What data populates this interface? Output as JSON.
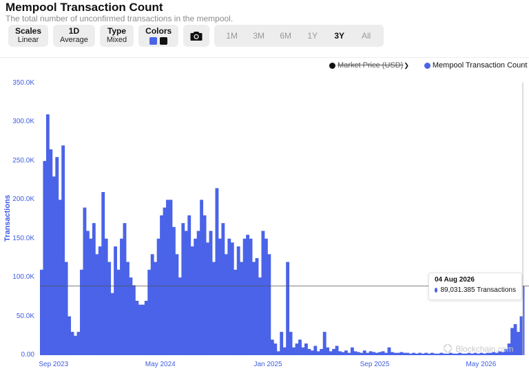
{
  "header": {
    "title": "Mempool Transaction Count",
    "subtitle": "The total number of unconfirmed transactions in the mempool."
  },
  "toolbar": {
    "scales": {
      "label": "Scales",
      "value": "Linear"
    },
    "resolution": {
      "label": "1D",
      "value": "Average"
    },
    "type": {
      "label": "Type",
      "value": "Mixed"
    },
    "colors": {
      "label": "Colors",
      "swatches": [
        "#4a63e8",
        "#111111"
      ]
    },
    "camera_icon": "camera-icon",
    "ranges": [
      "1M",
      "3M",
      "6M",
      "1Y",
      "3Y",
      "All"
    ],
    "active_range": "3Y"
  },
  "legend": {
    "items": [
      {
        "name": "Market Price (USD)",
        "color": "#111111",
        "active": false
      },
      {
        "name": "Mempool Transaction Count",
        "color": "#4a63e8",
        "active": true
      }
    ]
  },
  "tooltip": {
    "date": "04 Aug 2026",
    "value_text": "89,031.385 Transactions"
  },
  "watermark": "Blockchain.com",
  "chart_data": {
    "type": "bar",
    "ylabel": "Transactions",
    "ylim": [
      0,
      350000
    ],
    "yticks": [
      "0.00",
      "50.0K",
      "100.0K",
      "150.0K",
      "200.0K",
      "250.0K",
      "300.0K",
      "350.0K"
    ],
    "xticks": [
      "Sep 2023",
      "May 2024",
      "Jan 2025",
      "Sep 2025",
      "May 2026"
    ],
    "x_range": [
      "2023-08-01",
      "2026-08-04"
    ],
    "color": "#4a63e8",
    "series": [
      {
        "name": "Mempool Transaction Count",
        "points": [
          [
            "2023-08-01",
            110000
          ],
          [
            "2023-08-08",
            250000
          ],
          [
            "2023-08-15",
            310000
          ],
          [
            "2023-08-22",
            265000
          ],
          [
            "2023-08-29",
            230000
          ],
          [
            "2023-09-05",
            255000
          ],
          [
            "2023-09-12",
            200000
          ],
          [
            "2023-09-19",
            270000
          ],
          [
            "2023-09-26",
            120000
          ],
          [
            "2023-10-03",
            50000
          ],
          [
            "2023-10-10",
            30000
          ],
          [
            "2023-10-17",
            25000
          ],
          [
            "2023-10-24",
            30000
          ],
          [
            "2023-10-31",
            110000
          ],
          [
            "2023-11-07",
            190000
          ],
          [
            "2023-11-14",
            160000
          ],
          [
            "2023-11-21",
            150000
          ],
          [
            "2023-11-28",
            170000
          ],
          [
            "2023-12-05",
            130000
          ],
          [
            "2023-12-12",
            140000
          ],
          [
            "2023-12-19",
            210000
          ],
          [
            "2023-12-26",
            150000
          ],
          [
            "2024-01-02",
            120000
          ],
          [
            "2024-01-09",
            80000
          ],
          [
            "2024-01-16",
            140000
          ],
          [
            "2024-01-23",
            110000
          ],
          [
            "2024-01-30",
            150000
          ],
          [
            "2024-02-06",
            170000
          ],
          [
            "2024-02-13",
            120000
          ],
          [
            "2024-02-20",
            100000
          ],
          [
            "2024-02-27",
            90000
          ],
          [
            "2024-03-05",
            70000
          ],
          [
            "2024-03-12",
            65000
          ],
          [
            "2024-03-19",
            65000
          ],
          [
            "2024-03-26",
            70000
          ],
          [
            "2024-04-02",
            110000
          ],
          [
            "2024-04-09",
            130000
          ],
          [
            "2024-04-16",
            120000
          ],
          [
            "2024-04-23",
            150000
          ],
          [
            "2024-04-30",
            180000
          ],
          [
            "2024-05-07",
            190000
          ],
          [
            "2024-05-14",
            200000
          ],
          [
            "2024-05-21",
            200000
          ],
          [
            "2024-05-28",
            165000
          ],
          [
            "2024-06-04",
            130000
          ],
          [
            "2024-06-11",
            100000
          ],
          [
            "2024-06-18",
            170000
          ],
          [
            "2024-06-25",
            160000
          ],
          [
            "2024-07-02",
            180000
          ],
          [
            "2024-07-09",
            140000
          ],
          [
            "2024-07-16",
            150000
          ],
          [
            "2024-07-23",
            160000
          ],
          [
            "2024-07-30",
            200000
          ],
          [
            "2024-08-06",
            180000
          ],
          [
            "2024-08-13",
            145000
          ],
          [
            "2024-08-20",
            160000
          ],
          [
            "2024-08-27",
            120000
          ],
          [
            "2024-09-03",
            215000
          ],
          [
            "2024-09-10",
            150000
          ],
          [
            "2024-09-17",
            170000
          ],
          [
            "2024-09-24",
            130000
          ],
          [
            "2024-10-01",
            150000
          ],
          [
            "2024-10-08",
            145000
          ],
          [
            "2024-10-15",
            110000
          ],
          [
            "2024-10-22",
            140000
          ],
          [
            "2024-10-29",
            120000
          ],
          [
            "2024-11-05",
            150000
          ],
          [
            "2024-11-12",
            155000
          ],
          [
            "2024-11-19",
            150000
          ],
          [
            "2024-11-26",
            120000
          ],
          [
            "2024-12-03",
            125000
          ],
          [
            "2024-12-10",
            100000
          ],
          [
            "2024-12-17",
            160000
          ],
          [
            "2024-12-24",
            150000
          ],
          [
            "2024-12-31",
            130000
          ],
          [
            "2025-01-07",
            20000
          ],
          [
            "2025-01-14",
            15000
          ],
          [
            "2025-01-21",
            5000
          ],
          [
            "2025-01-28",
            30000
          ],
          [
            "2025-02-04",
            10000
          ],
          [
            "2025-02-11",
            120000
          ],
          [
            "2025-02-18",
            30000
          ],
          [
            "2025-02-25",
            10000
          ],
          [
            "2025-03-04",
            15000
          ],
          [
            "2025-03-11",
            20000
          ],
          [
            "2025-03-18",
            10000
          ],
          [
            "2025-03-25",
            15000
          ],
          [
            "2025-04-01",
            8000
          ],
          [
            "2025-04-08",
            6000
          ],
          [
            "2025-04-15",
            12000
          ],
          [
            "2025-04-22",
            5000
          ],
          [
            "2025-04-29",
            8000
          ],
          [
            "2025-05-06",
            30000
          ],
          [
            "2025-05-13",
            10000
          ],
          [
            "2025-05-20",
            5000
          ],
          [
            "2025-05-27",
            8000
          ],
          [
            "2025-06-03",
            12000
          ],
          [
            "2025-06-10",
            5000
          ],
          [
            "2025-06-17",
            4000
          ],
          [
            "2025-06-24",
            6000
          ],
          [
            "2025-07-01",
            3000
          ],
          [
            "2025-07-08",
            10000
          ],
          [
            "2025-07-15",
            5000
          ],
          [
            "2025-07-22",
            4000
          ],
          [
            "2025-07-29",
            3000
          ],
          [
            "2025-08-05",
            6000
          ],
          [
            "2025-08-12",
            3000
          ],
          [
            "2025-08-19",
            5000
          ],
          [
            "2025-08-26",
            4000
          ],
          [
            "2025-09-02",
            3000
          ],
          [
            "2025-09-09",
            4000
          ],
          [
            "2025-09-16",
            5000
          ],
          [
            "2025-09-23",
            3000
          ],
          [
            "2025-09-30",
            10000
          ],
          [
            "2025-10-07",
            4000
          ],
          [
            "2025-10-14",
            3000
          ],
          [
            "2025-10-21",
            3000
          ],
          [
            "2025-10-28",
            4000
          ],
          [
            "2025-11-04",
            3000
          ],
          [
            "2025-11-11",
            3000
          ],
          [
            "2025-11-18",
            2000
          ],
          [
            "2025-11-25",
            3000
          ],
          [
            "2025-12-02",
            2000
          ],
          [
            "2025-12-09",
            3000
          ],
          [
            "2025-12-16",
            2000
          ],
          [
            "2025-12-23",
            3000
          ],
          [
            "2025-12-30",
            2000
          ],
          [
            "2026-01-06",
            3000
          ],
          [
            "2026-01-13",
            2000
          ],
          [
            "2026-01-20",
            2000
          ],
          [
            "2026-01-27",
            3000
          ],
          [
            "2026-02-03",
            2000
          ],
          [
            "2026-02-10",
            2000
          ],
          [
            "2026-02-17",
            3000
          ],
          [
            "2026-02-24",
            2000
          ],
          [
            "2026-03-03",
            2000
          ],
          [
            "2026-03-10",
            3000
          ],
          [
            "2026-03-17",
            2000
          ],
          [
            "2026-03-24",
            2000
          ],
          [
            "2026-03-31",
            3000
          ],
          [
            "2026-04-07",
            2000
          ],
          [
            "2026-04-14",
            3000
          ],
          [
            "2026-04-21",
            2000
          ],
          [
            "2026-04-28",
            3000
          ],
          [
            "2026-05-05",
            2000
          ],
          [
            "2026-05-12",
            3000
          ],
          [
            "2026-05-19",
            3000
          ],
          [
            "2026-05-26",
            4000
          ],
          [
            "2026-06-02",
            3000
          ],
          [
            "2026-06-09",
            5000
          ],
          [
            "2026-06-16",
            4000
          ],
          [
            "2026-06-23",
            8000
          ],
          [
            "2026-06-30",
            15000
          ],
          [
            "2026-07-07",
            35000
          ],
          [
            "2026-07-14",
            40000
          ],
          [
            "2026-07-21",
            30000
          ],
          [
            "2026-07-28",
            50000
          ],
          [
            "2026-08-04",
            89031
          ]
        ]
      }
    ],
    "tooltip_point": [
      "2026-08-04",
      89031.385
    ]
  }
}
